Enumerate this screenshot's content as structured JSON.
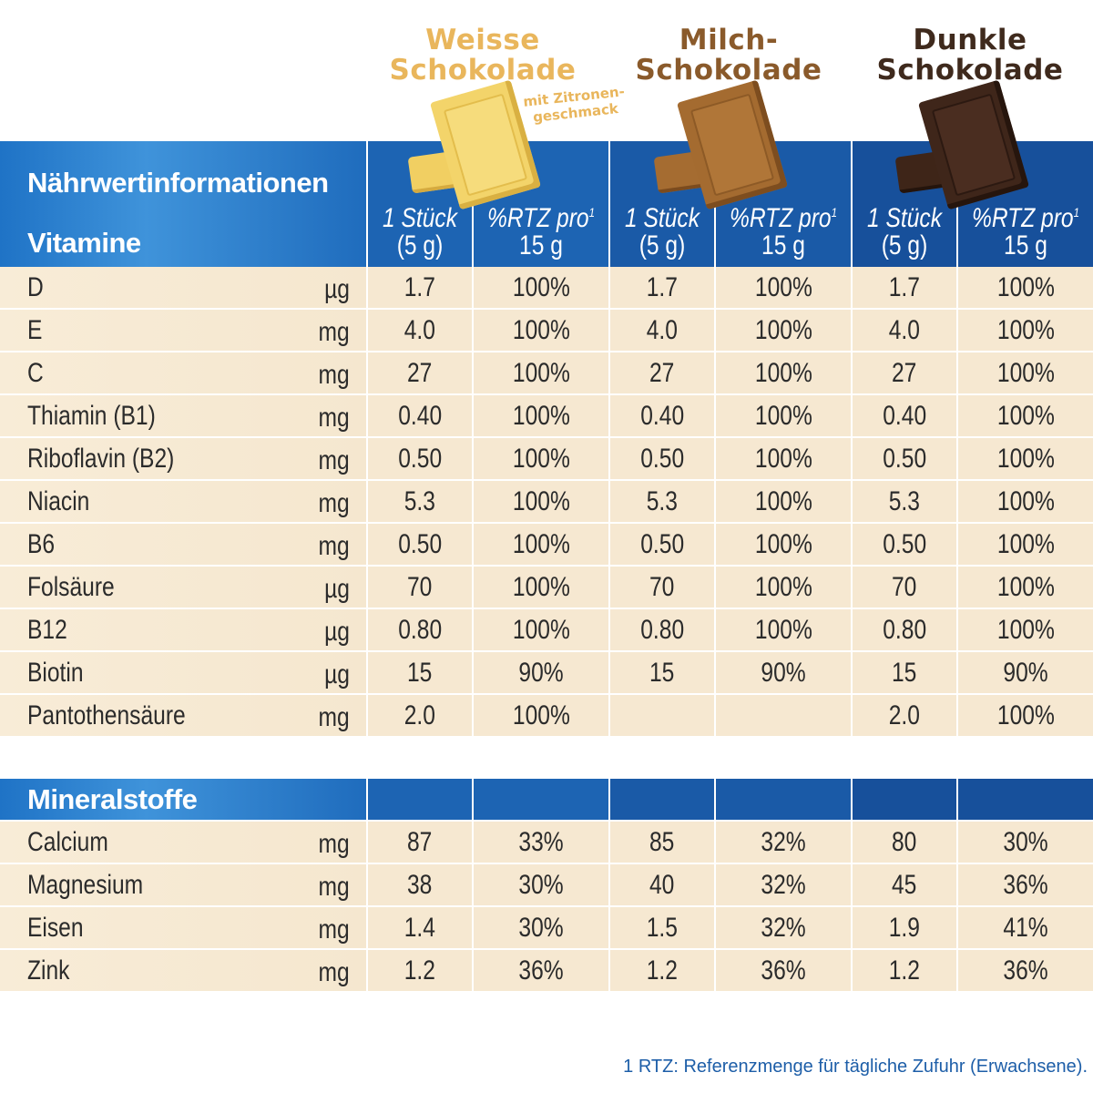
{
  "products": {
    "white": {
      "title_line1": "Weisse",
      "title_line2": "Schokolade",
      "note_line1": "mit Zitronen-",
      "note_line2": "geschmack",
      "color": "#e9b65c"
    },
    "milk": {
      "title_line1": "Milch-",
      "title_line2": "Schokolade",
      "color": "#8a5a2b"
    },
    "dark": {
      "title_line1": "Dunkle",
      "title_line2": "Schokolade",
      "color": "#3f2a1d"
    }
  },
  "header": {
    "title": "Nährwertinformationen",
    "section": "Vitamine",
    "col_portion_line1": "1 Stück",
    "col_portion_line2": "(5 g)",
    "col_rtz_line1": "%RTZ pro",
    "col_rtz_sup": "1",
    "col_rtz_line2": "15 g"
  },
  "vitamins": [
    {
      "name": "D",
      "unit": "µg",
      "v": [
        "1.7",
        "100%",
        "1.7",
        "100%",
        "1.7",
        "100%"
      ]
    },
    {
      "name": "E",
      "unit": "mg",
      "v": [
        "4.0",
        "100%",
        "4.0",
        "100%",
        "4.0",
        "100%"
      ]
    },
    {
      "name": "C",
      "unit": "mg",
      "v": [
        "27",
        "100%",
        "27",
        "100%",
        "27",
        "100%"
      ]
    },
    {
      "name": "Thiamin (B1)",
      "unit": "mg",
      "v": [
        "0.40",
        "100%",
        "0.40",
        "100%",
        "0.40",
        "100%"
      ]
    },
    {
      "name": "Riboflavin (B2)",
      "unit": "mg",
      "v": [
        "0.50",
        "100%",
        "0.50",
        "100%",
        "0.50",
        "100%"
      ]
    },
    {
      "name": "Niacin",
      "unit": "mg",
      "v": [
        "5.3",
        "100%",
        "5.3",
        "100%",
        "5.3",
        "100%"
      ]
    },
    {
      "name": "B6",
      "unit": "mg",
      "v": [
        "0.50",
        "100%",
        "0.50",
        "100%",
        "0.50",
        "100%"
      ]
    },
    {
      "name": "Folsäure",
      "unit": "µg",
      "v": [
        "70",
        "100%",
        "70",
        "100%",
        "70",
        "100%"
      ]
    },
    {
      "name": "B12",
      "unit": "µg",
      "v": [
        "0.80",
        "100%",
        "0.80",
        "100%",
        "0.80",
        "100%"
      ]
    },
    {
      "name": "Biotin",
      "unit": "µg",
      "v": [
        "15",
        "90%",
        "15",
        "90%",
        "15",
        "90%"
      ]
    },
    {
      "name": "Pantothensäure",
      "unit": "mg",
      "v": [
        "2.0",
        "100%",
        "",
        "",
        "2.0",
        "100%"
      ]
    }
  ],
  "minerals_section": "Mineralstoffe",
  "minerals": [
    {
      "name": "Calcium",
      "unit": "mg",
      "v": [
        "87",
        "33%",
        "85",
        "32%",
        "80",
        "30%"
      ]
    },
    {
      "name": "Magnesium",
      "unit": "mg",
      "v": [
        "38",
        "30%",
        "40",
        "32%",
        "45",
        "36%"
      ]
    },
    {
      "name": "Eisen",
      "unit": "mg",
      "v": [
        "1.4",
        "30%",
        "1.5",
        "32%",
        "1.9",
        "41%"
      ]
    },
    {
      "name": "Zink",
      "unit": "mg",
      "v": [
        "1.2",
        "36%",
        "1.2",
        "36%",
        "1.2",
        "36%"
      ]
    }
  ],
  "footnote": "1  RTZ: Referenzmenge für tägliche Zufuhr (Erwachsene)."
}
